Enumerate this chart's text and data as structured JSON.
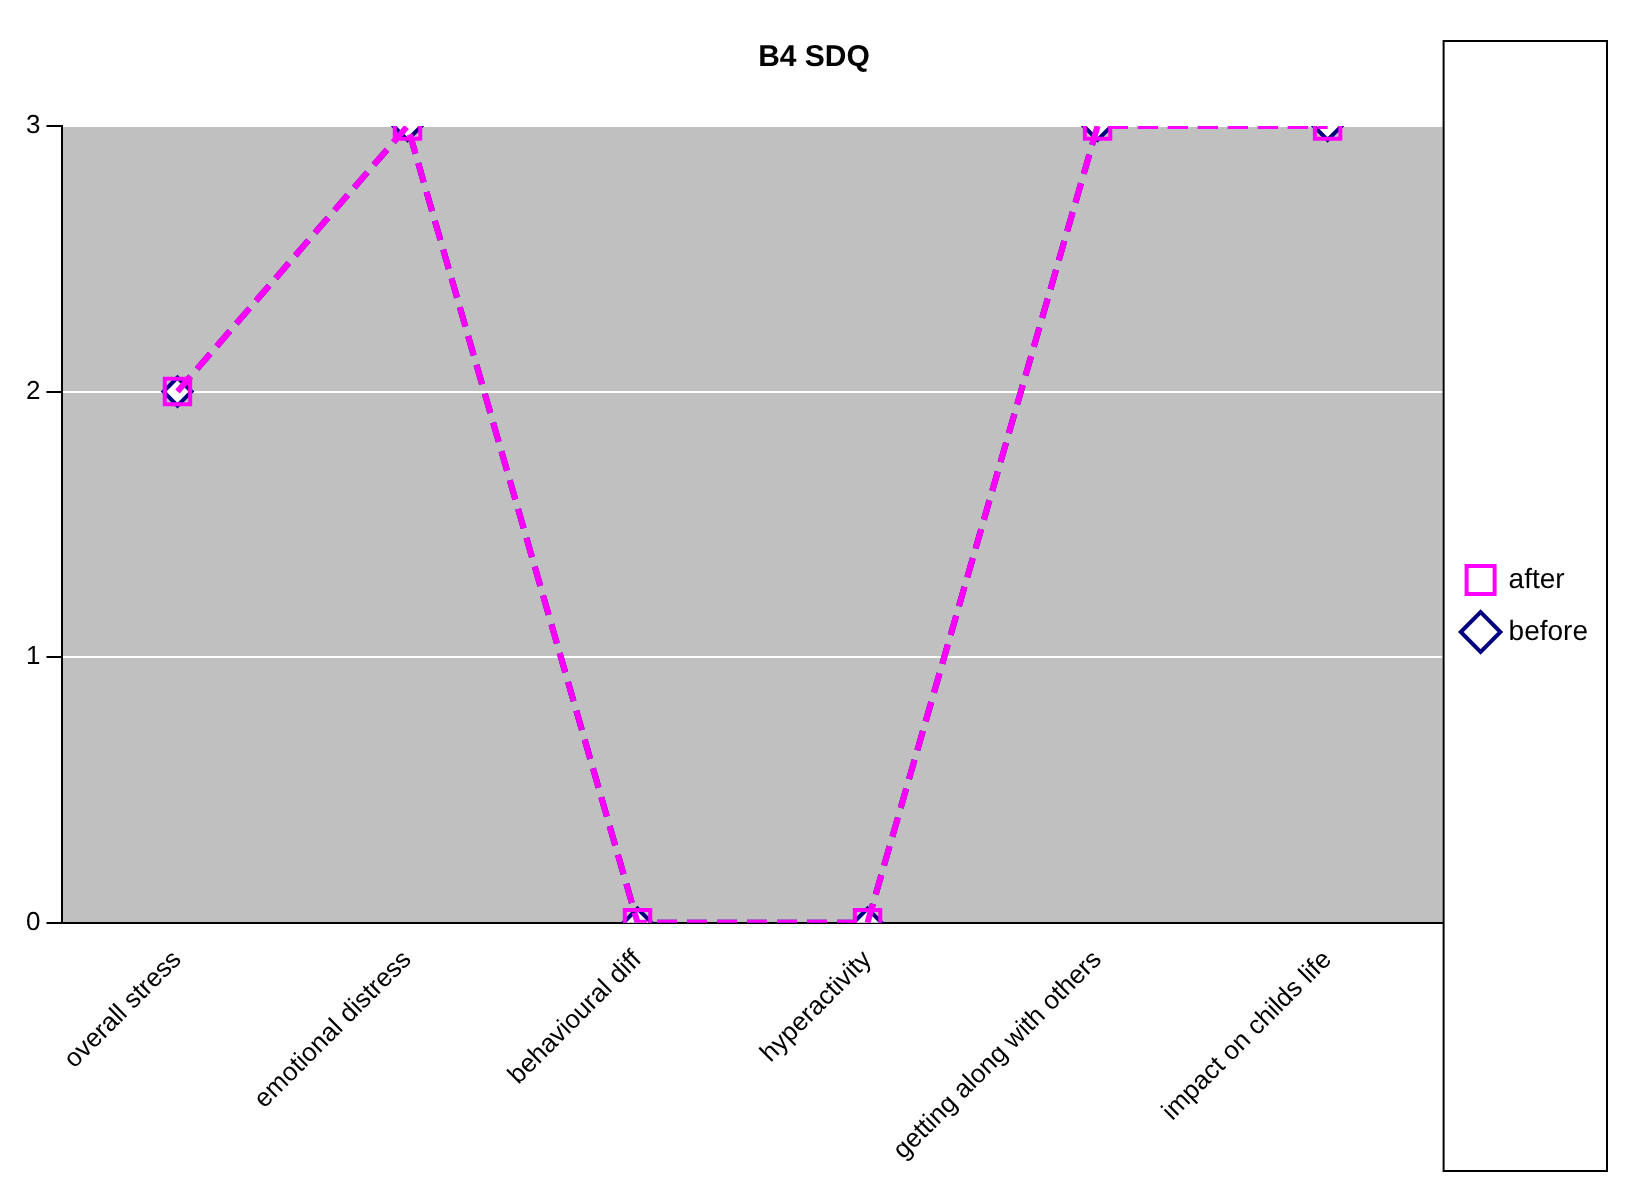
{
  "chart_data": {
    "type": "line",
    "title": "B4 SDQ",
    "categories": [
      "overall stress",
      "emotional distress",
      "behavioural diff",
      "hyperactivity",
      "getting along with others",
      "impact on childs life"
    ],
    "series": [
      {
        "name": "before",
        "color": "#000080",
        "values": [
          2,
          3,
          0,
          0,
          3,
          3
        ],
        "marker": "diamond"
      },
      {
        "name": "after",
        "color": "#ff00ff",
        "values": [
          2,
          3,
          0,
          0,
          3,
          3
        ],
        "marker": "square"
      }
    ],
    "ylim": [
      0,
      3
    ],
    "yticks": [
      0,
      1,
      2,
      3
    ],
    "grid": "y",
    "legend": "right",
    "line_style": "dashed"
  }
}
